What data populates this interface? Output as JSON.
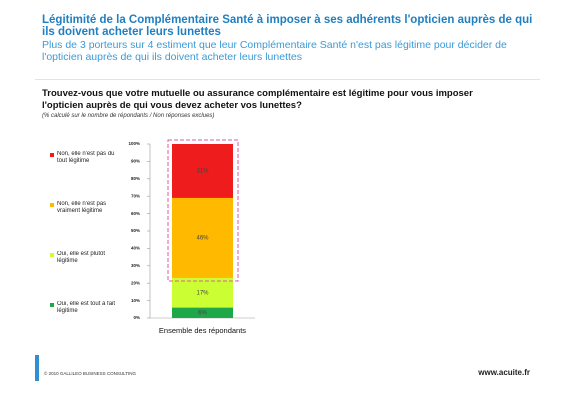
{
  "header": {
    "title": "Légitimité de la Complémentaire Santé à imposer à ses adhérents l'opticien auprès de qui ils doivent acheter leurs lunettes",
    "subtitle": "Plus de 3 porteurs sur 4 estiment que leur Complémentaire Santé n'est pas légitime pour  décider  de l'opticien auprès de qui ils doivent acheter leurs lunettes"
  },
  "chart_data": {
    "type": "stacked_bar",
    "title": "Trouvez-vous que votre mutuelle ou assurance complémentaire est légitime pour vous imposer l'opticien auprès de qui vous devez acheter vos lunettes?",
    "subtitle": "(% calculé sur le nombre de répondants / Non réponses exclues)",
    "categories": [
      "Ensemble des répondants"
    ],
    "series": [
      {
        "name": "Oui, elle est tout à fait légitime",
        "color": "#1fa84a",
        "values": [
          6
        ],
        "value_labels": [
          "6%"
        ]
      },
      {
        "name": "Oui, elle est plutôt légitime",
        "color": "#ccff33",
        "values": [
          17
        ],
        "value_labels": [
          "17%"
        ]
      },
      {
        "name": "Non, elle n'est pas vraiment légitime",
        "color": "#ffba00",
        "values": [
          46
        ],
        "value_labels": [
          "46%"
        ]
      },
      {
        "name": "Non, elle n'est pas du tout légitime",
        "color": "#ee1c1c",
        "values": [
          31
        ],
        "value_labels": [
          "31%"
        ]
      }
    ],
    "ylim": [
      0,
      100
    ],
    "yticks": [
      {
        "value": 0,
        "label": "0%"
      },
      {
        "value": 10,
        "label": "10%"
      },
      {
        "value": 20,
        "label": "20%"
      },
      {
        "value": 30,
        "label": "30%"
      },
      {
        "value": 40,
        "label": "40%"
      },
      {
        "value": 50,
        "label": "50%"
      },
      {
        "value": 60,
        "label": "60%"
      },
      {
        "value": 70,
        "label": "70%"
      },
      {
        "value": 80,
        "label": "80%"
      },
      {
        "value": 90,
        "label": "90%"
      },
      {
        "value": 100,
        "label": "100%"
      }
    ],
    "legend": "left"
  },
  "footer": {
    "copyright": "© 2010 GALLILEO BUSINESS CONSULTING",
    "site": "www.acuite.fr"
  }
}
